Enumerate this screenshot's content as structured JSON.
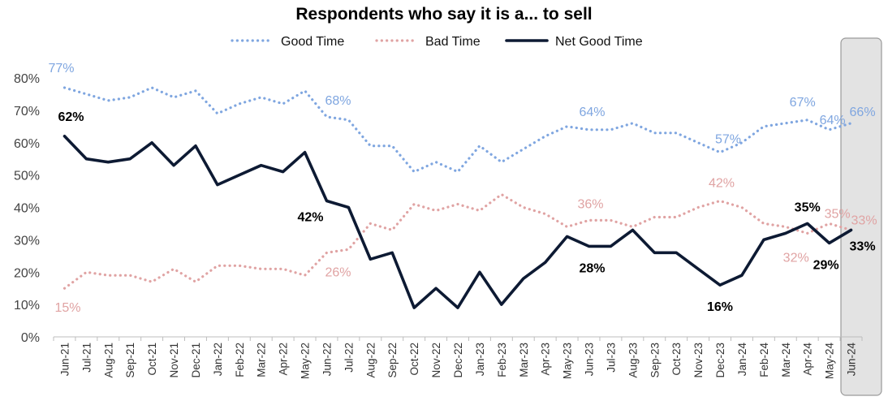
{
  "chart_data": {
    "type": "line",
    "title": "Respondents who say it is a... to sell",
    "xlabel": "",
    "ylabel": "",
    "ylim": [
      0,
      80
    ],
    "yticks": [
      "0%",
      "10%",
      "20%",
      "30%",
      "40%",
      "50%",
      "60%",
      "70%",
      "80%"
    ],
    "grid": false,
    "legend": "top-center",
    "highlight_category": "Jun-24",
    "categories": [
      "Jun-21",
      "Jul-21",
      "Aug-21",
      "Sep-21",
      "Oct-21",
      "Nov-21",
      "Dec-21",
      "Jan-22",
      "Feb-22",
      "Mar-22",
      "Apr-22",
      "May-22",
      "Jun-22",
      "Jul-22",
      "Aug-22",
      "Sep-22",
      "Oct-22",
      "Nov-22",
      "Dec-22",
      "Jan-23",
      "Feb-23",
      "Mar-23",
      "Apr-23",
      "May-23",
      "Jun-23",
      "Jul-23",
      "Aug-23",
      "Sep-23",
      "Oct-23",
      "Nov-23",
      "Dec-23",
      "Jan-24",
      "Feb-24",
      "Mar-24",
      "Apr-24",
      "May-24",
      "Jun-24"
    ],
    "series": [
      {
        "name": "Good Time",
        "style": "dotted",
        "color": "#7fa6e0",
        "values": [
          77,
          75,
          73,
          74,
          77,
          74,
          76,
          69,
          72,
          74,
          72,
          76,
          68,
          67,
          59,
          59,
          51,
          54,
          51,
          59,
          54,
          58,
          62,
          65,
          64,
          64,
          66,
          63,
          63,
          60,
          57,
          60,
          65,
          66,
          67,
          64,
          66
        ],
        "labels": [
          {
            "index": 0,
            "text": "77%"
          },
          {
            "index": 12,
            "text": "68%"
          },
          {
            "index": 24,
            "text": "64%"
          },
          {
            "index": 30,
            "text": "57%"
          },
          {
            "index": 34,
            "text": "67%"
          },
          {
            "index": 35,
            "text": "64%"
          },
          {
            "index": 36,
            "text": "66%"
          }
        ]
      },
      {
        "name": "Bad Time",
        "style": "dotted",
        "color": "#e0a3a3",
        "values": [
          15,
          20,
          19,
          19,
          17,
          21,
          17,
          22,
          22,
          21,
          21,
          19,
          26,
          27,
          35,
          33,
          41,
          39,
          41,
          39,
          44,
          40,
          38,
          34,
          36,
          36,
          34,
          37,
          37,
          40,
          42,
          40,
          35,
          34,
          32,
          35,
          33
        ],
        "labels": [
          {
            "index": 0,
            "text": "15%"
          },
          {
            "index": 12,
            "text": "26%"
          },
          {
            "index": 24,
            "text": "36%"
          },
          {
            "index": 30,
            "text": "42%"
          },
          {
            "index": 34,
            "text": "32%"
          },
          {
            "index": 35,
            "text": "35%"
          },
          {
            "index": 36,
            "text": "33%"
          }
        ]
      },
      {
        "name": "Net Good Time",
        "style": "solid",
        "color": "#0d1a33",
        "values": [
          62,
          55,
          54,
          55,
          60,
          53,
          59,
          47,
          50,
          53,
          51,
          57,
          42,
          40,
          24,
          26,
          9,
          15,
          9,
          20,
          10,
          18,
          23,
          31,
          28,
          28,
          33,
          26,
          26,
          21,
          16,
          19,
          30,
          32,
          35,
          29,
          33
        ],
        "labels": [
          {
            "index": 0,
            "text": "62%"
          },
          {
            "index": 12,
            "text": "42%"
          },
          {
            "index": 24,
            "text": "28%"
          },
          {
            "index": 30,
            "text": "16%"
          },
          {
            "index": 34,
            "text": "35%"
          },
          {
            "index": 35,
            "text": "29%"
          },
          {
            "index": 36,
            "text": "33%"
          }
        ]
      }
    ]
  }
}
